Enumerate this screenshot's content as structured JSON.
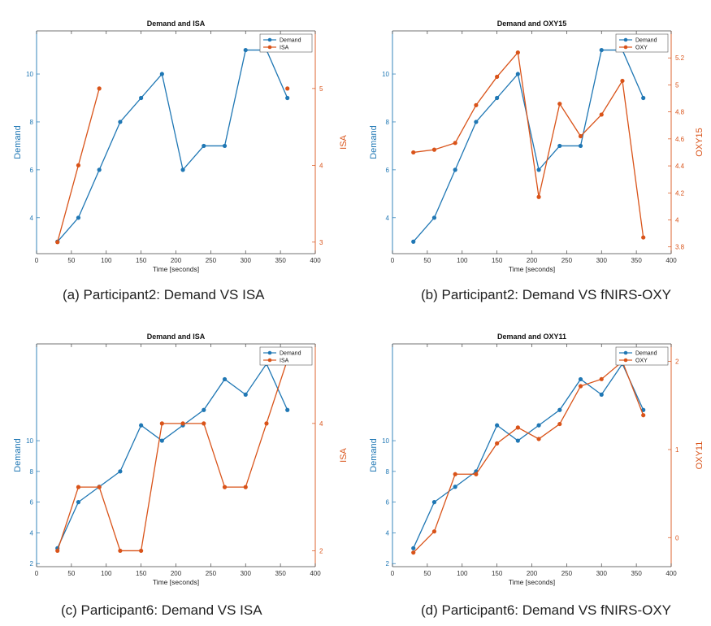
{
  "colors": {
    "demand": "#1f77b4",
    "right": "#d95319",
    "axis": "#444444",
    "grid": "#eeeeee"
  },
  "captions": {
    "a": "(a) Participant2: Demand VS ISA",
    "b": "(b) Participant2: Demand VS fNIRS-OXY",
    "c": "(c) Participant6: Demand VS ISA",
    "d": "(d) Participant6: Demand VS fNIRS-OXY"
  },
  "chart_data": [
    {
      "id": "a",
      "type": "line",
      "title": "Demand and ISA",
      "xlabel": "Time [seconds]",
      "ylabel_left": "Demand",
      "ylabel_right": "ISA",
      "xlim": [
        0,
        400
      ],
      "xticks": [
        0,
        50,
        100,
        150,
        200,
        250,
        300,
        350,
        400
      ],
      "ylim_left": [
        2.5,
        11.8
      ],
      "yticks_left": [
        4,
        6,
        8,
        10
      ],
      "ylim_right": [
        2.85,
        5.75
      ],
      "yticks_right": [
        3,
        4,
        5
      ],
      "legend": [
        "Demand",
        "ISA"
      ],
      "legend_position": "top-right",
      "series": [
        {
          "name": "Demand",
          "axis": "left",
          "x": [
            30,
            60,
            90,
            120,
            150,
            180,
            210,
            240,
            270,
            300,
            330,
            360
          ],
          "y": [
            3,
            4,
            6,
            8,
            9,
            10,
            6,
            7,
            7,
            11,
            11,
            9
          ]
        },
        {
          "name": "ISA",
          "axis": "right",
          "segments": [
            {
              "x": [
                30,
                60,
                90
              ],
              "y": [
                3,
                4,
                5
              ]
            },
            {
              "x": [
                360
              ],
              "y": [
                5
              ]
            }
          ]
        }
      ]
    },
    {
      "id": "b",
      "type": "line",
      "title": "Demand and OXY15",
      "xlabel": "Time [seconds]",
      "ylabel_left": "Demand",
      "ylabel_right": "OXY15",
      "xlim": [
        0,
        400
      ],
      "xticks": [
        0,
        50,
        100,
        150,
        200,
        250,
        300,
        350,
        400
      ],
      "ylim_left": [
        2.5,
        11.8
      ],
      "yticks_left": [
        4,
        6,
        8,
        10
      ],
      "ylim_right": [
        3.75,
        5.4
      ],
      "yticks_right": [
        3.8,
        4,
        4.2,
        4.4,
        4.6,
        4.8,
        5,
        5.2
      ],
      "legend": [
        "Demand",
        "OXY"
      ],
      "legend_position": "top-right",
      "series": [
        {
          "name": "Demand",
          "axis": "left",
          "x": [
            30,
            60,
            90,
            120,
            150,
            180,
            210,
            240,
            270,
            300,
            330,
            360
          ],
          "y": [
            3,
            4,
            6,
            8,
            9,
            10,
            6,
            7,
            7,
            11,
            11,
            9
          ]
        },
        {
          "name": "OXY",
          "axis": "right",
          "x": [
            30,
            60,
            90,
            120,
            150,
            180,
            210,
            240,
            270,
            300,
            330,
            360
          ],
          "y": [
            4.5,
            4.52,
            4.57,
            4.85,
            5.06,
            5.24,
            4.17,
            4.86,
            4.62,
            4.78,
            5.03,
            3.87
          ]
        }
      ]
    },
    {
      "id": "c",
      "type": "line",
      "title": "Demand and ISA",
      "xlabel": "Time [seconds]",
      "ylabel_left": "Demand",
      "ylabel_right": "ISA",
      "xlim": [
        0,
        400
      ],
      "xticks": [
        0,
        50,
        100,
        150,
        200,
        250,
        300,
        350,
        400
      ],
      "ylim_left": [
        1.8,
        16.3
      ],
      "yticks_left": [
        2,
        4,
        6,
        8,
        10
      ],
      "ylim_right": [
        1.75,
        5.25
      ],
      "yticks_right": [
        2,
        4
      ],
      "legend": [
        "Demand",
        "ISA"
      ],
      "legend_position": "top-right",
      "series": [
        {
          "name": "Demand",
          "axis": "left",
          "x": [
            30,
            60,
            90,
            120,
            150,
            180,
            210,
            240,
            270,
            300,
            330,
            360
          ],
          "y": [
            3,
            6,
            7,
            8,
            11,
            10,
            11,
            12,
            14,
            13,
            15,
            12
          ]
        },
        {
          "name": "ISA",
          "axis": "right",
          "x": [
            30,
            60,
            90,
            120,
            150,
            180,
            210,
            240,
            270,
            300,
            330,
            360
          ],
          "y": [
            2,
            3,
            3,
            2,
            2,
            4,
            4,
            4,
            3,
            3,
            4,
            5
          ]
        }
      ]
    },
    {
      "id": "d",
      "type": "line",
      "title": "Demand and OXY11",
      "xlabel": "Time [seconds]",
      "ylabel_left": "Demand",
      "ylabel_right": "OXY11",
      "xlim": [
        0,
        400
      ],
      "xticks": [
        0,
        50,
        100,
        150,
        200,
        250,
        300,
        350,
        400
      ],
      "ylim_left": [
        1.8,
        16.3
      ],
      "yticks_left": [
        2,
        4,
        6,
        8,
        10
      ],
      "ylim_right": [
        -0.33,
        2.2
      ],
      "yticks_right": [
        0,
        1,
        2
      ],
      "legend": [
        "Demand",
        "OXY"
      ],
      "legend_position": "top-right",
      "series": [
        {
          "name": "Demand",
          "axis": "left",
          "x": [
            30,
            60,
            90,
            120,
            150,
            180,
            210,
            240,
            270,
            300,
            330,
            360
          ],
          "y": [
            3,
            6,
            7,
            8,
            11,
            10,
            11,
            12,
            14,
            13,
            15,
            12
          ]
        },
        {
          "name": "OXY",
          "axis": "right",
          "x": [
            30,
            60,
            90,
            120,
            150,
            180,
            210,
            240,
            270,
            300,
            330,
            360
          ],
          "y": [
            -0.17,
            0.07,
            0.72,
            0.72,
            1.07,
            1.25,
            1.12,
            1.29,
            1.72,
            1.8,
            2.0,
            1.39
          ]
        }
      ]
    }
  ]
}
